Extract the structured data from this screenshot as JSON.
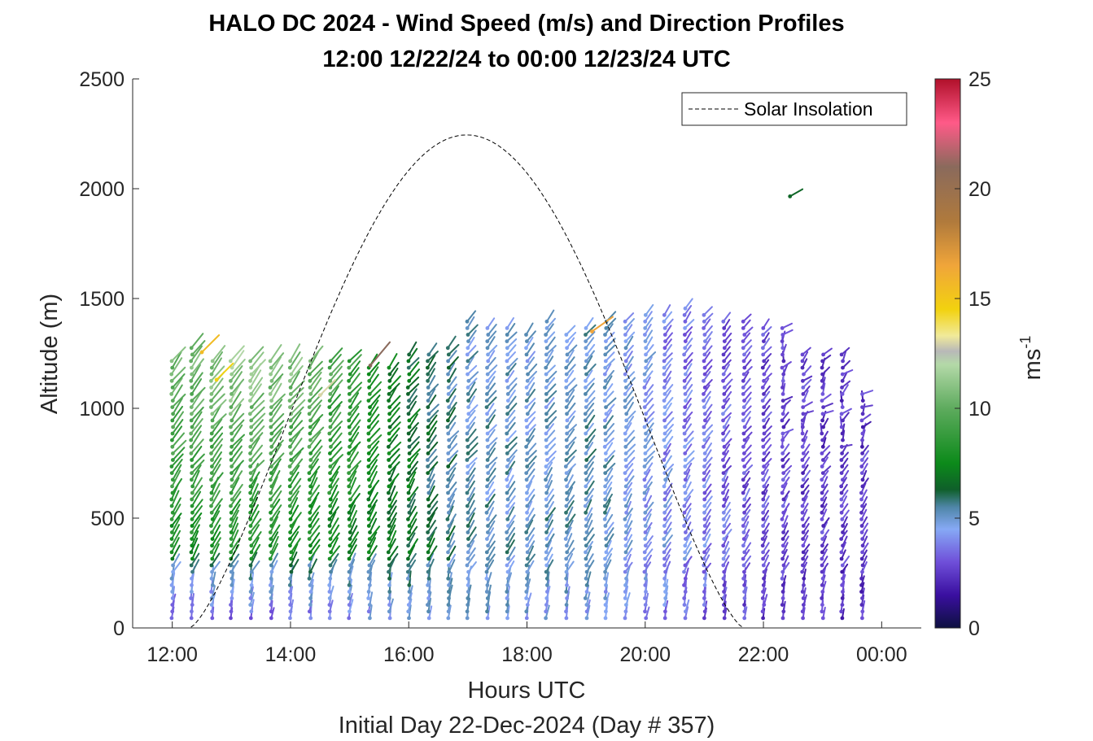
{
  "chart_data": {
    "type": "quiver",
    "title": "HALO DC 2024 - Wind Speed (m/s) and Direction Profiles",
    "subtitle": "12:00 12/22/24 to 00:00 12/23/24  UTC",
    "xlabel": "Hours UTC",
    "xlabel_secondary": "Initial Day 22-Dec-2024 (Day # 357)",
    "ylabel": "Altitude (m)",
    "xlim": [
      11.33,
      24.67
    ],
    "ylim": [
      0,
      2500
    ],
    "x_ticks": [
      12,
      14,
      16,
      18,
      20,
      22,
      24
    ],
    "x_tick_labels": [
      "12:00",
      "14:00",
      "16:00",
      "18:00",
      "20:00",
      "22:00",
      "00:00"
    ],
    "y_ticks": [
      0,
      500,
      1000,
      1500,
      2000,
      2500
    ],
    "y_tick_labels": [
      "0",
      "500",
      "1000",
      "1500",
      "2000",
      "2500"
    ],
    "colorbar": {
      "label": "ms",
      "label_exponent": "-1",
      "range": [
        0,
        25
      ],
      "ticks": [
        0,
        5,
        10,
        15,
        20,
        25
      ],
      "tick_labels": [
        "0",
        "5",
        "10",
        "15",
        "20",
        "25"
      ],
      "colormap": [
        {
          "v": 0,
          "c": "#0d1040"
        },
        {
          "v": 1.5,
          "c": "#3a0fa0"
        },
        {
          "v": 3,
          "c": "#6f4fd9"
        },
        {
          "v": 4.5,
          "c": "#86a9f5"
        },
        {
          "v": 5.5,
          "c": "#4f86a8"
        },
        {
          "v": 6.3,
          "c": "#0f5f2a"
        },
        {
          "v": 7.5,
          "c": "#0c8a1a"
        },
        {
          "v": 10,
          "c": "#5eab5e"
        },
        {
          "v": 12,
          "c": "#b4d9a8"
        },
        {
          "v": 12.6,
          "c": "#b8b8b8"
        },
        {
          "v": 13.3,
          "c": "#f1ea9a"
        },
        {
          "v": 14.5,
          "c": "#f2d20f"
        },
        {
          "v": 16.5,
          "c": "#f0a53a"
        },
        {
          "v": 18.5,
          "c": "#b07a3c"
        },
        {
          "v": 21,
          "c": "#8a6a5c"
        },
        {
          "v": 23,
          "c": "#ff5a88"
        },
        {
          "v": 25,
          "c": "#b0102a"
        }
      ]
    },
    "solar_insolation": {
      "name": "Solar Insolation",
      "style": "dashed",
      "color": "#000000",
      "sunrise_hour": 12.3,
      "sunset_hour": 21.66,
      "peak_hour": 16.98,
      "peak_altitude": 2245
    },
    "legend": {
      "position": "top-right",
      "entries": [
        "Solar Insolation"
      ]
    },
    "profile_times": [
      12.0,
      12.33,
      12.67,
      13.0,
      13.33,
      13.67,
      14.0,
      14.33,
      14.67,
      15.0,
      15.33,
      15.67,
      16.0,
      16.33,
      16.67,
      17.0,
      17.33,
      17.67,
      18.0,
      18.33,
      18.67,
      19.0,
      19.33,
      19.67,
      20.0,
      20.33,
      20.67,
      21.0,
      21.33,
      21.67,
      22.0,
      22.33,
      22.67,
      23.0,
      23.33,
      23.67
    ],
    "profile_top_altitudes": [
      1230,
      1290,
      1240,
      1230,
      1230,
      1240,
      1230,
      1240,
      1240,
      1230,
      1210,
      1200,
      1250,
      1270,
      1290,
      1410,
      1380,
      1370,
      1360,
      1400,
      1360,
      1370,
      1410,
      1410,
      1430,
      1430,
      1460,
      1440,
      1420,
      1410,
      1390,
      1370,
      1250,
      1250,
      1250,
      1080
    ],
    "speed_profile": {
      "comment_hours": "wind speed in m/s by time (hours UTC) and height (m)",
      "hours": [
        12,
        13,
        14,
        15,
        16,
        17,
        18,
        19,
        20,
        21,
        22,
        23,
        24
      ],
      "surface_speed": [
        3.0,
        3.0,
        3.2,
        3.8,
        4.5,
        4.8,
        4.6,
        4.4,
        4.0,
        3.2,
        2.6,
        2.4,
        2.3
      ],
      "mid_speed": [
        7.5,
        7.8,
        7.6,
        7.2,
        6.8,
        5.4,
        5.2,
        5.5,
        4.5,
        3.8,
        3.0,
        2.6,
        2.5
      ],
      "upper_speed": [
        10.5,
        11.5,
        11.0,
        9.0,
        6.5,
        5.0,
        4.8,
        5.0,
        4.2,
        3.2,
        2.8,
        2.5,
        2.5
      ]
    },
    "isolated_vectors": [
      {
        "x": 22.45,
        "y": 1965,
        "speed": 6.5,
        "direction_deg": 150
      },
      {
        "x": 12.5,
        "y": 1255,
        "speed": 15.5,
        "direction_deg": 135
      },
      {
        "x": 12.75,
        "y": 1130,
        "speed": 14.5,
        "direction_deg": 135
      },
      {
        "x": 15.35,
        "y": 1195,
        "speed": 21,
        "direction_deg": 130
      },
      {
        "x": 19.1,
        "y": 1350,
        "speed": 16.5,
        "direction_deg": 145
      },
      {
        "x": 14.5,
        "y": 1060,
        "speed": 13,
        "direction_deg": 135
      }
    ]
  }
}
